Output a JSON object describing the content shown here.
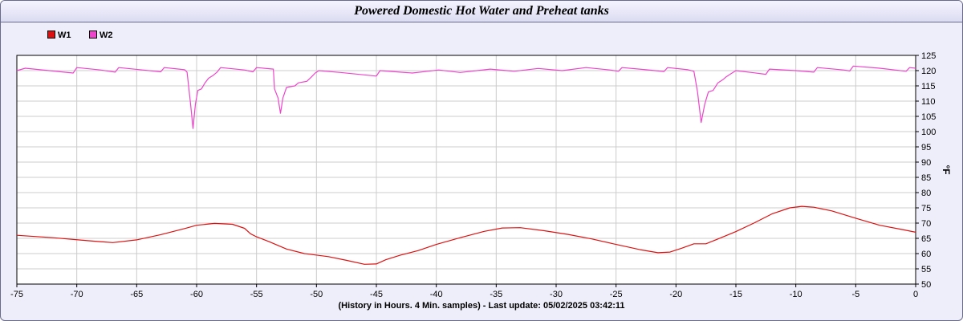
{
  "title": "Powered Domestic Hot Water and Preheat tanks",
  "footer": "(History in Hours. 4 Min. samples) - Last update: 05/02/2025 03:42:11",
  "legend": [
    {
      "name": "W1",
      "color": "#dd1111"
    },
    {
      "name": "W2",
      "color": "#ee44cc"
    }
  ],
  "chart_data": {
    "type": "line",
    "title": "Powered Domestic Hot Water and Preheat tanks",
    "xlabel": "(History in Hours. 4 Min. samples) - Last update: 05/02/2025 03:42:11",
    "ylabel": "°F",
    "xlim": [
      -75,
      0
    ],
    "ylim": [
      50,
      125
    ],
    "xticks": [
      -75,
      -70,
      -65,
      -60,
      -55,
      -50,
      -45,
      -40,
      -35,
      -30,
      -25,
      -20,
      -15,
      -10,
      -5,
      0
    ],
    "yticks": [
      50,
      55,
      60,
      65,
      70,
      75,
      80,
      85,
      90,
      95,
      100,
      105,
      110,
      115,
      120,
      125
    ],
    "grid": true,
    "legend_position": "top-left",
    "series": [
      {
        "name": "W1",
        "color": "#dd1111",
        "points": [
          [
            -75,
            66
          ],
          [
            -72,
            65.2
          ],
          [
            -69,
            64.2
          ],
          [
            -67,
            63.6
          ],
          [
            -65,
            64.5
          ],
          [
            -63,
            66.2
          ],
          [
            -61,
            68.2
          ],
          [
            -60,
            69.3
          ],
          [
            -58.5,
            69.9
          ],
          [
            -57,
            69.6
          ],
          [
            -56,
            68.3
          ],
          [
            -55.5,
            66.5
          ],
          [
            -55,
            65.5
          ],
          [
            -54,
            64
          ],
          [
            -52.5,
            61.5
          ],
          [
            -51,
            60
          ],
          [
            -49,
            59
          ],
          [
            -47.5,
            57.8
          ],
          [
            -46,
            56.5
          ],
          [
            -45,
            56.6
          ],
          [
            -44.2,
            58
          ],
          [
            -43,
            59.5
          ],
          [
            -41.5,
            61
          ],
          [
            -40,
            63
          ],
          [
            -38,
            65.2
          ],
          [
            -36,
            67.3
          ],
          [
            -34.5,
            68.4
          ],
          [
            -33,
            68.5
          ],
          [
            -31,
            67.5
          ],
          [
            -29,
            66.3
          ],
          [
            -27,
            64.8
          ],
          [
            -25,
            63
          ],
          [
            -23,
            61.3
          ],
          [
            -21.5,
            60.3
          ],
          [
            -20.5,
            60.5
          ],
          [
            -19.5,
            61.8
          ],
          [
            -18.5,
            63.2
          ],
          [
            -17.5,
            63.2
          ],
          [
            -16.5,
            64.8
          ],
          [
            -15,
            67.2
          ],
          [
            -13.5,
            70
          ],
          [
            -12,
            73
          ],
          [
            -10.5,
            75
          ],
          [
            -9.5,
            75.5
          ],
          [
            -8.5,
            75.2
          ],
          [
            -7,
            74
          ],
          [
            -5,
            71.6
          ],
          [
            -3,
            69.3
          ],
          [
            -1,
            67.8
          ],
          [
            0,
            67
          ]
        ]
      },
      {
        "name": "W2",
        "color": "#ee44cc",
        "points": [
          [
            -75,
            120
          ],
          [
            -74.3,
            120.8
          ],
          [
            -72.3,
            120
          ],
          [
            -70.3,
            119.2
          ],
          [
            -70,
            121
          ],
          [
            -68,
            120.2
          ],
          [
            -66.8,
            119.5
          ],
          [
            -66.5,
            121
          ],
          [
            -64.5,
            120.2
          ],
          [
            -63,
            119.6
          ],
          [
            -62.7,
            121
          ],
          [
            -61,
            120.3
          ],
          [
            -60.8,
            119.5
          ],
          [
            -60.5,
            109
          ],
          [
            -60.3,
            101
          ],
          [
            -60.1,
            109
          ],
          [
            -59.9,
            113.5
          ],
          [
            -59.6,
            114
          ],
          [
            -59.3,
            116
          ],
          [
            -59,
            117.5
          ],
          [
            -58.6,
            118.5
          ],
          [
            -58.3,
            119.5
          ],
          [
            -58,
            121
          ],
          [
            -56,
            120.2
          ],
          [
            -55.3,
            119.6
          ],
          [
            -55,
            121
          ],
          [
            -53.6,
            120.5
          ],
          [
            -53.5,
            114
          ],
          [
            -53.2,
            111
          ],
          [
            -53,
            106
          ],
          [
            -52.8,
            111
          ],
          [
            -52.5,
            114.5
          ],
          [
            -51.8,
            115
          ],
          [
            -51.5,
            116
          ],
          [
            -50.8,
            116.5
          ],
          [
            -50.4,
            118
          ],
          [
            -50.1,
            119.2
          ],
          [
            -49.8,
            120
          ],
          [
            -48,
            119.4
          ],
          [
            -47,
            119
          ],
          [
            -45,
            118.2
          ],
          [
            -44.7,
            120
          ],
          [
            -42,
            119.2
          ],
          [
            -39.8,
            120.2
          ],
          [
            -38,
            119.4
          ],
          [
            -35.5,
            120.5
          ],
          [
            -33.5,
            119.8
          ],
          [
            -31.5,
            120.7
          ],
          [
            -29.5,
            120
          ],
          [
            -27.5,
            121
          ],
          [
            -25.5,
            120.2
          ],
          [
            -24.8,
            119.8
          ],
          [
            -24.5,
            121
          ],
          [
            -22.5,
            120.3
          ],
          [
            -21,
            119.7
          ],
          [
            -20.7,
            121
          ],
          [
            -19,
            120.3
          ],
          [
            -18.5,
            119.8
          ],
          [
            -18.2,
            113
          ],
          [
            -17.9,
            103
          ],
          [
            -17.6,
            109
          ],
          [
            -17.3,
            113
          ],
          [
            -16.9,
            113.5
          ],
          [
            -16.5,
            116
          ],
          [
            -16.1,
            117
          ],
          [
            -15.8,
            118
          ],
          [
            -15.4,
            119
          ],
          [
            -15,
            120
          ],
          [
            -13.5,
            119.3
          ],
          [
            -12.5,
            118.8
          ],
          [
            -12.2,
            120.5
          ],
          [
            -10,
            120
          ],
          [
            -8.5,
            119.5
          ],
          [
            -8.2,
            121
          ],
          [
            -6,
            120.2
          ],
          [
            -5.5,
            119.9
          ],
          [
            -5.2,
            121.5
          ],
          [
            -3,
            120.8
          ],
          [
            -0.8,
            119.8
          ],
          [
            -0.5,
            121
          ],
          [
            0,
            120.8
          ]
        ]
      }
    ]
  }
}
